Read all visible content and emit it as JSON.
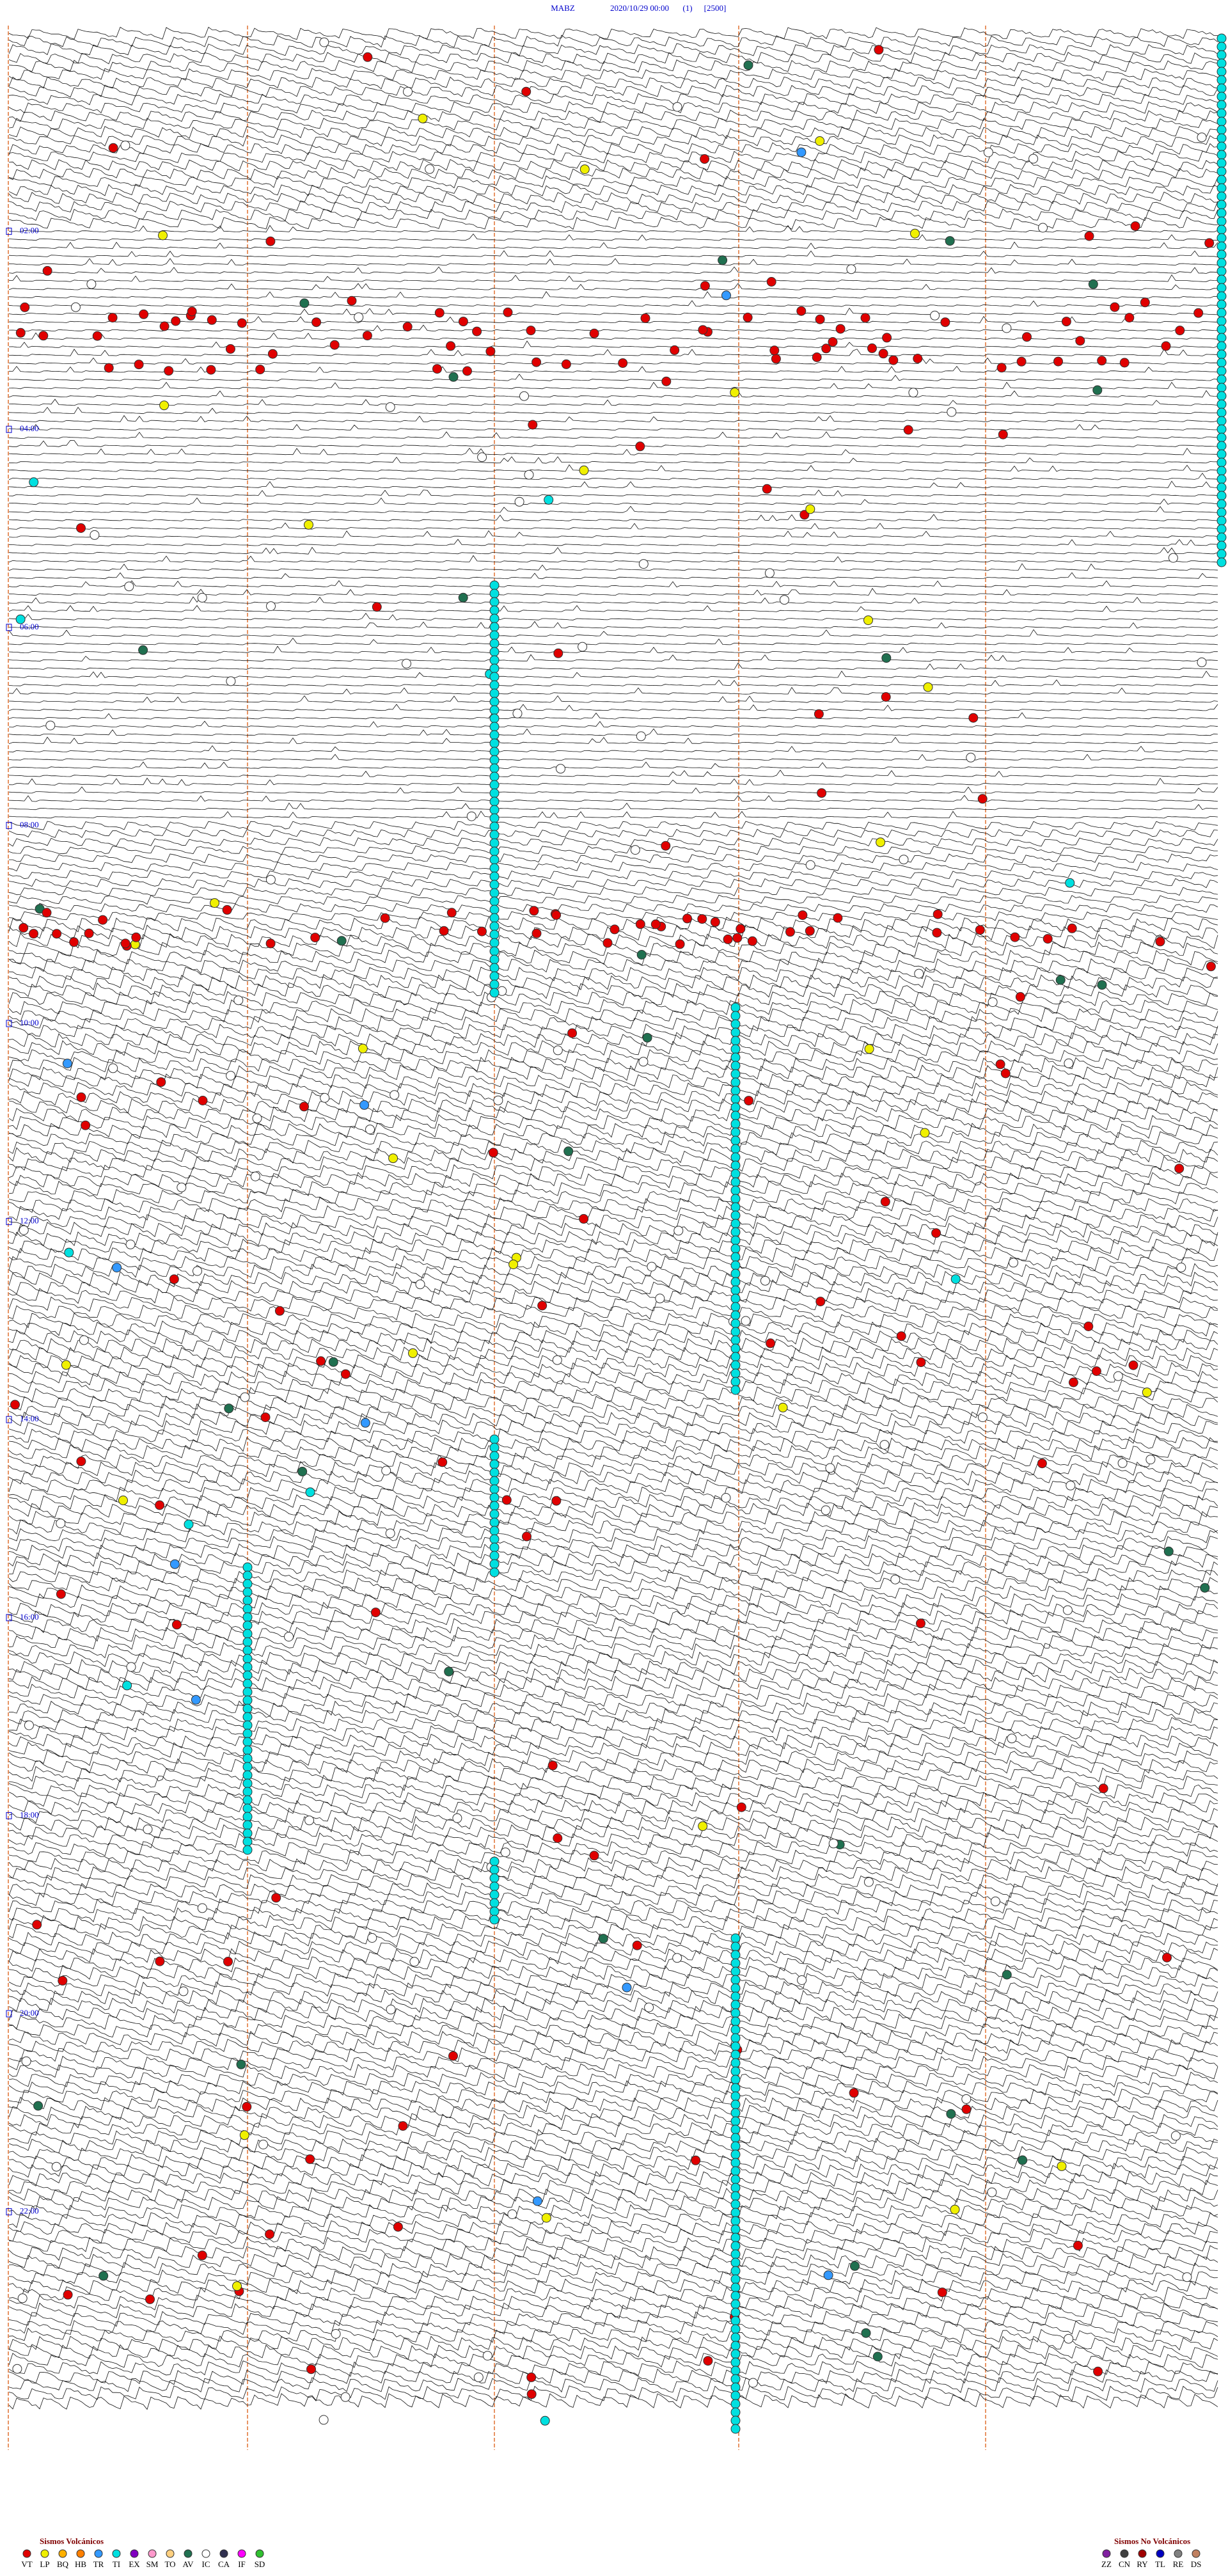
{
  "header": {
    "station": "MABZ",
    "datetime": "2020/10/29 00:00",
    "channel": "(1)",
    "scale": "[2500]"
  },
  "time_labels": [
    "02:00",
    "04:00",
    "06:00",
    "08:00",
    "10:00",
    "12:00",
    "14:00",
    "16:00",
    "18:00",
    "20:00",
    "22:00"
  ],
  "legend": {
    "volcanic": {
      "title": "Sismos Volcánicos",
      "items": [
        {
          "code": "VT",
          "color": "#e00000"
        },
        {
          "code": "LP",
          "color": "#f0f000"
        },
        {
          "code": "BQ",
          "color": "#ffb000"
        },
        {
          "code": "HB",
          "color": "#ff7f00"
        },
        {
          "code": "TR",
          "color": "#3399ff"
        },
        {
          "code": "TI",
          "color": "#00e0e0"
        },
        {
          "code": "EX",
          "color": "#8000c0"
        },
        {
          "code": "SM",
          "color": "#ff99cc"
        },
        {
          "code": "TO",
          "color": "#ffd080"
        },
        {
          "code": "AV",
          "color": "#207050"
        },
        {
          "code": "IC",
          "color": "#ffffff"
        },
        {
          "code": "CA",
          "color": "#303050"
        },
        {
          "code": "IF",
          "color": "#ff00ff"
        },
        {
          "code": "SD",
          "color": "#30c030"
        }
      ]
    },
    "non_volcanic": {
      "title": "Sismos No Volcánicos",
      "items": [
        {
          "code": "ZZ",
          "color": "#8020a0"
        },
        {
          "code": "CN",
          "color": "#404040"
        },
        {
          "code": "RY",
          "color": "#a00000"
        },
        {
          "code": "TL",
          "color": "#0000c0"
        },
        {
          "code": "RE",
          "color": "#808080"
        },
        {
          "code": "DS",
          "color": "#c08060"
        }
      ]
    }
  }
}
